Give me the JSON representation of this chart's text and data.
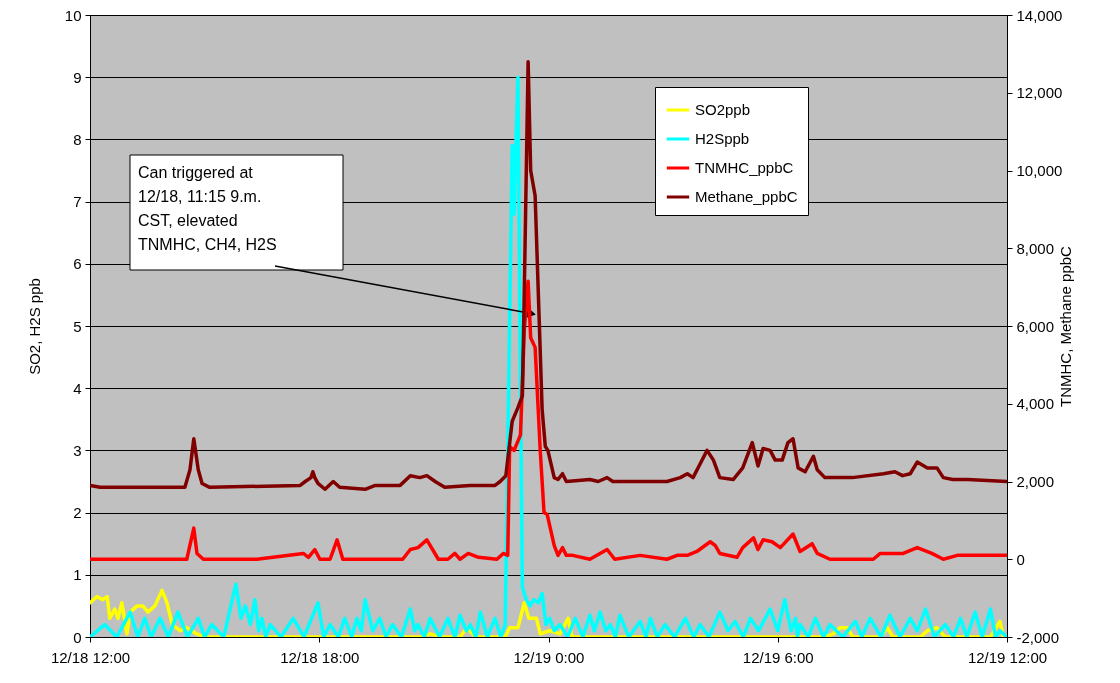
{
  "chart_data": {
    "type": "line",
    "ylabel": "SO2, H2S ppb",
    "y2label": "TNMHC, Methane ppbC",
    "xlim": [
      "--12-18T12:00",
      "--12-19T12:00"
    ],
    "xticks": [
      {
        "value": "--12-18T12:00",
        "label": "12/18 12:00"
      },
      {
        "value": "--12-18T18:00",
        "label": "12/18 18:00"
      },
      {
        "value": "--12-19T00:00",
        "label": "12/19 0:00"
      },
      {
        "value": "--12-19T06:00",
        "label": "12/19 6:00"
      },
      {
        "value": "--12-19T12:00",
        "label": "12/19 12:00"
      }
    ],
    "ylim": [
      0,
      10
    ],
    "yticks": [
      0,
      1,
      2,
      3,
      4,
      5,
      6,
      7,
      8,
      9,
      10
    ],
    "y2lim": [
      -2000,
      14000
    ],
    "y2ticks": [
      {
        "value": -2000,
        "label": "-2,000"
      },
      0,
      {
        "value": 2000,
        "label": "2,000"
      },
      {
        "value": 4000,
        "label": "4,000"
      },
      {
        "value": 6000,
        "label": "6,000"
      },
      {
        "value": 8000,
        "label": "8,000"
      },
      {
        "value": 10000,
        "label": "10,000"
      },
      {
        "value": 12000,
        "label": "12,000"
      },
      {
        "value": 14000,
        "label": "14,000"
      }
    ],
    "grid": "y",
    "legend": "top right",
    "annotations": [
      {
        "text": "Can triggered at 12/18, 11:15 9.m. CST, elevated TNMHC, CH4, H2S",
        "x": "--12-18T23:33",
        "y": 5.2
      }
    ],
    "series": [
      {
        "name": "SO2ppb",
        "color": "#ffff00",
        "x": [
          "--12-18T12:00",
          "--12-18T12:11",
          "--12-18T12:20",
          "--12-18T12:27",
          "--12-18T12:31",
          "--12-18T12:39",
          "--12-18T12:44",
          "--12-18T12:50",
          "--12-18T12:58",
          "--12-18T13:03",
          "--12-18T13:14",
          "--12-18T13:23",
          "--12-18T13:31",
          "--12-18T13:42",
          "--12-18T13:53",
          "--12-18T14:01",
          "--12-18T14:09",
          "--12-18T14:22",
          "--12-18T14:32",
          "--12-18T14:48",
          "--12-18T14:58",
          "--12-18T20:43",
          "--12-18T20:54",
          "--12-18T21:10",
          "--12-18T21:41",
          "--12-18T21:52",
          "--12-18T22:05",
          "--12-18T22:52",
          "--12-18T22:59",
          "--12-18T23:12",
          "--12-18T23:22",
          "--12-18T23:29",
          "--12-18T23:41",
          "--12-18T23:47",
          "--12-19T00:02",
          "--12-19T00:18",
          "--12-19T00:31",
          "--12-19T00:37",
          "--12-19T07:14",
          "--12-19T07:27",
          "--12-19T07:38",
          "--12-19T07:49",
          "--12-19T07:58",
          "--12-19T08:41",
          "--12-19T08:52",
          "--12-19T09:01",
          "--12-19T09:44",
          "--12-19T09:55",
          "--12-19T10:10",
          "--12-19T10:23",
          "--12-19T11:34",
          "--12-19T11:49",
          "--12-19T11:54",
          "--12-19T12:00"
        ],
        "values": [
          0.55,
          0.65,
          0.6,
          0.65,
          0.3,
          0.45,
          0.3,
          0.55,
          0.05,
          0.4,
          0.5,
          0.5,
          0.4,
          0.5,
          0.75,
          0.55,
          0.2,
          0.1,
          0.15,
          0.05,
          0,
          0,
          0.05,
          0,
          0,
          0.15,
          0,
          0,
          0.15,
          0.15,
          0.55,
          0.3,
          0.3,
          0.05,
          0.1,
          0.05,
          0.3,
          0,
          0,
          0.05,
          0.15,
          0.15,
          0,
          0,
          0.15,
          0,
          0,
          0.1,
          0.15,
          0,
          0,
          0.25,
          0,
          0
        ]
      },
      {
        "name": "H2Sppb",
        "color": "#00ffff",
        "x": [
          "--12-18T12:00",
          "--12-18T12:23",
          "--12-18T12:42",
          "--12-18T13:03",
          "--12-18T13:15",
          "--12-18T13:26",
          "--12-18T13:36",
          "--12-18T13:50",
          "--12-18T14:03",
          "--12-18T14:18",
          "--12-18T14:33",
          "--12-18T14:50",
          "--12-18T15:00",
          "--12-18T15:11",
          "--12-18T15:30",
          "--12-18T15:49",
          "--12-18T15:57",
          "--12-18T16:04",
          "--12-18T16:12",
          "--12-18T16:19",
          "--12-18T16:25",
          "--12-18T16:30",
          "--12-18T16:36",
          "--12-18T16:43",
          "--12-18T17:00",
          "--12-18T17:19",
          "--12-18T17:36",
          "--12-18T17:58",
          "--12-18T18:07",
          "--12-18T18:17",
          "--12-18T18:30",
          "--12-18T18:40",
          "--12-18T18:51",
          "--12-18T18:59",
          "--12-18T19:06",
          "--12-18T19:12",
          "--12-18T19:24",
          "--12-18T19:35",
          "--12-18T19:45",
          "--12-18T19:55",
          "--12-18T20:09",
          "--12-18T20:23",
          "--12-18T20:30",
          "--12-18T20:35",
          "--12-18T20:45",
          "--12-18T20:54",
          "--12-18T21:09",
          "--12-18T21:22",
          "--12-18T21:33",
          "--12-18T21:41",
          "--12-18T21:51",
          "--12-18T21:57",
          "--12-18T22:06",
          "--12-18T22:13",
          "--12-18T22:24",
          "--12-18T22:36",
          "--12-18T22:45",
          "--12-18T22:52",
          "--12-18T22:56",
          "--12-18T23:03",
          "--12-18T23:06",
          "--12-18T23:09",
          "--12-18T23:12",
          "--12-18T23:16",
          "--12-18T23:19",
          "--12-18T23:25",
          "--12-18T23:31",
          "--12-18T23:37",
          "--12-18T23:44",
          "--12-18T23:50",
          "--12-18T23:56",
          "--12-19T00:02",
          "--12-19T00:09",
          "--12-19T00:18",
          "--12-19T00:30",
          "--12-19T00:42",
          "--12-19T00:54",
          "--12-19T01:05",
          "--12-19T01:12",
          "--12-19T01:21",
          "--12-19T01:30",
          "--12-19T01:37",
          "--12-19T01:45",
          "--12-19T01:52",
          "--12-19T02:06",
          "--12-19T02:24",
          "--12-19T02:33",
          "--12-19T02:40",
          "--12-19T02:51",
          "--12-19T03:03",
          "--12-19T03:18",
          "--12-19T03:35",
          "--12-19T03:48",
          "--12-19T03:58",
          "--12-19T04:12",
          "--12-19T04:29",
          "--12-19T04:42",
          "--12-19T04:53",
          "--12-19T05:06",
          "--12-19T05:17",
          "--12-19T05:30",
          "--12-19T05:48",
          "--12-19T06:00",
          "--12-19T06:11",
          "--12-19T06:21",
          "--12-19T06:28",
          "--12-19T06:31",
          "--12-19T06:35",
          "--12-19T06:48",
          "--12-19T06:59",
          "--12-19T07:12",
          "--12-19T07:22",
          "--12-19T07:42",
          "--12-19T08:02",
          "--12-19T08:12",
          "--12-19T08:25",
          "--12-19T08:42",
          "--12-19T08:56",
          "--12-19T09:12",
          "--12-19T09:28",
          "--12-19T09:39",
          "--12-19T09:52",
          "--12-19T10:06",
          "--12-19T10:23",
          "--12-19T10:36",
          "--12-19T10:47",
          "--12-19T10:57",
          "--12-19T11:10",
          "--12-19T11:21",
          "--12-19T11:34",
          "--12-19T11:42",
          "--12-19T11:49",
          "--12-19T12:00"
        ],
        "values": [
          0,
          0.2,
          0,
          0.4,
          0,
          0.3,
          0,
          0.3,
          0,
          0.4,
          0,
          0.3,
          0,
          0.2,
          0,
          0.85,
          0.3,
          0.5,
          0.2,
          0.6,
          0.1,
          0.3,
          0,
          0.2,
          0,
          0.3,
          0,
          0.55,
          0,
          0.2,
          0,
          0.3,
          0,
          0.3,
          0.1,
          0.6,
          0.1,
          0.3,
          0,
          0.2,
          0,
          0.45,
          0.1,
          0.2,
          0,
          0.3,
          0,
          0.3,
          0,
          0.35,
          0.1,
          0.2,
          0,
          0.4,
          0,
          0.3,
          0,
          0.2,
          3,
          7.9,
          6.8,
          8,
          9,
          4,
          0.8,
          0.6,
          0.5,
          0.6,
          0.55,
          0.7,
          0.2,
          0.3,
          0.1,
          0.2,
          0,
          0.3,
          0,
          0.35,
          0.1,
          0.4,
          0.1,
          0.2,
          0,
          0.35,
          0,
          0.25,
          0,
          0.3,
          0,
          0.2,
          0,
          0.3,
          0,
          0.2,
          0,
          0.4,
          0.1,
          0.25,
          0,
          0.3,
          0.1,
          0.45,
          0.1,
          0.6,
          0.1,
          0.3,
          0,
          0.2,
          0,
          0.3,
          0,
          0.2,
          0,
          0.25,
          0,
          0.3,
          0,
          0.35,
          0,
          0.3,
          0.1,
          0.45,
          0,
          0.2,
          0,
          0.3,
          0,
          0.4,
          0,
          0.45,
          0,
          0.1,
          0
        ]
      },
      {
        "name": "TNMHC_ppbC",
        "color": "#ff0000",
        "axis": "y2",
        "x": [
          "--12-18T12:00",
          "--12-18T14:32",
          "--12-18T14:43",
          "--12-18T14:48",
          "--12-18T14:58",
          "--12-18T16:22",
          "--12-18T17:35",
          "--12-18T17:43",
          "--12-18T17:53",
          "--12-18T18:01",
          "--12-18T18:17",
          "--12-18T18:28",
          "--12-18T18:37",
          "--12-18T20:11",
          "--12-18T20:23",
          "--12-18T20:35",
          "--12-18T20:49",
          "--12-18T21:07",
          "--12-18T21:22",
          "--12-18T21:33",
          "--12-18T21:41",
          "--12-18T21:54",
          "--12-18T22:10",
          "--12-18T22:39",
          "--12-18T22:49",
          "--12-18T22:56",
          "--12-18T22:59",
          "--12-18T23:06",
          "--12-18T23:16",
          "--12-18T23:22",
          "--12-18T23:28",
          "--12-18T23:32",
          "--12-18T23:39",
          "--12-18T23:47",
          "--12-18T23:53",
          "--12-18T23:58",
          "--12-19T00:09",
          "--12-19T00:15",
          "--12-19T00:22",
          "--12-19T00:28",
          "--12-19T00:38",
          "--12-19T01:05",
          "--12-19T01:32",
          "--12-19T01:44",
          "--12-19T02:24",
          "--12-19T03:06",
          "--12-19T03:22",
          "--12-19T03:38",
          "--12-19T03:53",
          "--12-19T04:14",
          "--12-19T04:22",
          "--12-19T04:29",
          "--12-19T04:56",
          "--12-19T05:05",
          "--12-19T05:22",
          "--12-19T05:29",
          "--12-19T05:37",
          "--12-19T05:51",
          "--12-19T06:04",
          "--12-19T06:24",
          "--12-19T06:35",
          "--12-19T06:54",
          "--12-19T07:02",
          "--12-19T07:22",
          "--12-19T08:30",
          "--12-19T08:41",
          "--12-19T09:17",
          "--12-19T09:39",
          "--12-19T10:02",
          "--12-19T10:20",
          "--12-19T10:42",
          "--12-19T12:00"
        ],
        "values": [
          0,
          0,
          800,
          150,
          0,
          0,
          150,
          50,
          250,
          0,
          0,
          500,
          0,
          0,
          250,
          300,
          500,
          0,
          0,
          150,
          0,
          150,
          50,
          0,
          150,
          100,
          2900,
          2800,
          3200,
          5900,
          7150,
          5700,
          5450,
          2800,
          1200,
          1150,
          350,
          100,
          300,
          100,
          100,
          0,
          250,
          0,
          100,
          0,
          100,
          100,
          200,
          450,
          350,
          150,
          50,
          300,
          550,
          250,
          500,
          450,
          300,
          650,
          200,
          400,
          150,
          0,
          0,
          150,
          150,
          300,
          150,
          0,
          100,
          100
        ]
      },
      {
        "name": "Methane_ppbC",
        "color": "#800000",
        "axis": "y2",
        "x": [
          "--12-18T12:00",
          "--12-18T12:16",
          "--12-18T13:34",
          "--12-18T14:29",
          "--12-18T14:37",
          "--12-18T14:43",
          "--12-18T14:50",
          "--12-18T14:56",
          "--12-18T15:08",
          "--12-18T17:30",
          "--12-18T17:38",
          "--12-18T17:47",
          "--12-18T17:50",
          "--12-18T17:53",
          "--12-18T17:58",
          "--12-18T18:09",
          "--12-18T18:22",
          "--12-18T18:32",
          "--12-18T19:12",
          "--12-18T19:28",
          "--12-18T20:07",
          "--12-18T20:23",
          "--12-18T20:38",
          "--12-18T20:49",
          "--12-18T21:02",
          "--12-18T21:17",
          "--12-18T21:57",
          "--12-18T22:36",
          "--12-18T22:44",
          "--12-18T22:53",
          "--12-18T23:03",
          "--12-18T23:12",
          "--12-18T23:19",
          "--12-18T23:22",
          "--12-18T23:28",
          "--12-18T23:32",
          "--12-18T23:39",
          "--12-18T23:50",
          "--12-18T23:55",
          "--12-18T23:59",
          "--12-19T00:09",
          "--12-19T00:15",
          "--12-19T00:22",
          "--12-19T00:28",
          "--12-19T01:05",
          "--12-19T01:18",
          "--12-19T01:32",
          "--12-19T01:41",
          "--12-19T03:06",
          "--12-19T03:27",
          "--12-19T03:38",
          "--12-19T03:47",
          "--12-19T03:58",
          "--12-19T04:09",
          "--12-19T04:19",
          "--12-19T04:29",
          "--12-19T04:50",
          "--12-19T05:05",
          "--12-19T05:20",
          "--12-19T05:29",
          "--12-19T05:37",
          "--12-19T05:48",
          "--12-19T05:56",
          "--12-19T06:07",
          "--12-19T06:16",
          "--12-19T06:24",
          "--12-19T06:32",
          "--12-19T06:43",
          "--12-19T06:56",
          "--12-19T07:02",
          "--12-19T07:14",
          "--12-19T07:57",
          "--12-19T08:46",
          "--12-19T09:04",
          "--12-19T09:16",
          "--12-19T09:28",
          "--12-19T09:39",
          "--12-19T09:55",
          "--12-19T10:10",
          "--12-19T10:20",
          "--12-19T10:35",
          "--12-19T10:58",
          "--12-19T12:00"
        ],
        "values": [
          1900,
          1850,
          1850,
          1850,
          2300,
          3100,
          2300,
          1950,
          1850,
          1900,
          2000,
          2100,
          2250,
          2100,
          1950,
          1800,
          2000,
          1850,
          1800,
          1900,
          1900,
          2150,
          2100,
          2150,
          2000,
          1850,
          1900,
          1900,
          2000,
          2150,
          3550,
          3900,
          4200,
          6900,
          12800,
          10000,
          9350,
          3850,
          2900,
          2800,
          2100,
          2050,
          2200,
          2000,
          2050,
          2000,
          2100,
          2000,
          2000,
          2100,
          2200,
          2100,
          2450,
          2800,
          2550,
          2100,
          2050,
          2350,
          3000,
          2400,
          2850,
          2800,
          2550,
          2550,
          3000,
          3100,
          2350,
          2250,
          2650,
          2300,
          2100,
          2100,
          2200,
          2250,
          2150,
          2200,
          2500,
          2350,
          2350,
          2100,
          2050,
          2050,
          2000
        ]
      }
    ]
  }
}
